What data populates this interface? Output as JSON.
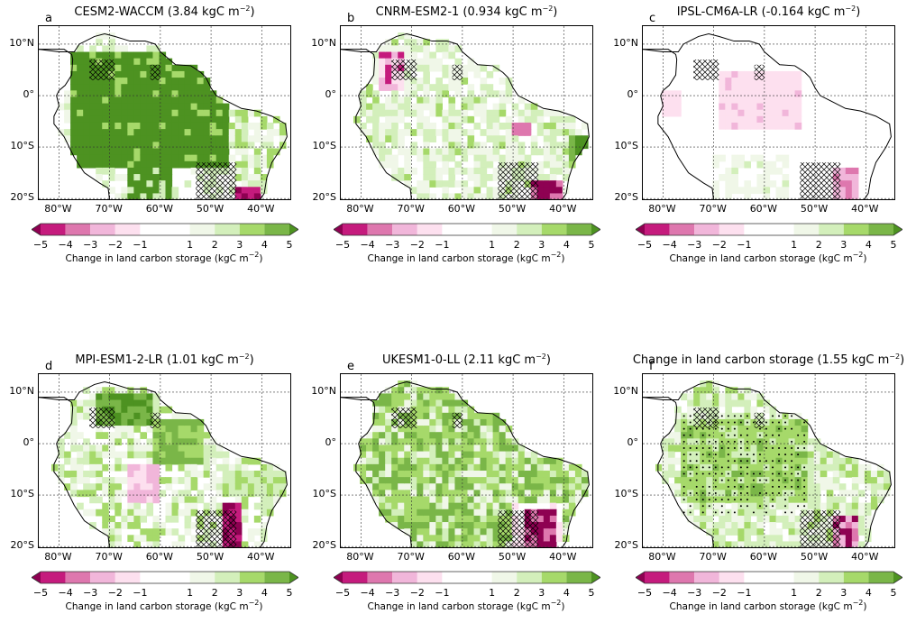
{
  "figure": {
    "colormap": {
      "levels": [
        -5,
        -4,
        -3,
        -2,
        -1,
        1,
        2,
        3,
        4,
        5
      ],
      "tick_labels": [
        "−5",
        "−4",
        "−3",
        "−2",
        "−1",
        "1",
        "2",
        "3",
        "4",
        "5"
      ],
      "colors": {
        "-6": "#8e0152",
        "-5": "#c51b7d",
        "-4": "#de77ae",
        "-3": "#f1b6da",
        "-2": "#fde0ef",
        "0": "#ffffff",
        "2": "#f0f7e8",
        "3": "#d3efbb",
        "4": "#a6d96a",
        "5": "#7ab648",
        "6": "#4d9221"
      },
      "label_prefix": "Change in land carbon storage (kgC m",
      "label_exp": "−2",
      "label_suffix": ")"
    },
    "axes": {
      "yticks": [
        "10°N",
        "0°",
        "10°S",
        "20°S"
      ],
      "ytick_values": [
        10,
        0,
        -10,
        -20
      ],
      "xticks": [
        "80°W",
        "70°W",
        "60°W",
        "50°W",
        "40°W"
      ],
      "xtick_values": [
        -80,
        -70,
        -60,
        -50,
        -40
      ],
      "xlim": [
        -84,
        -34
      ],
      "ylim": [
        -20.5,
        13.5
      ]
    }
  },
  "chart_data": [
    {
      "type": "heatmap",
      "panel": "a",
      "title_prefix": "CESM2-WACCM (3.84 kgC m",
      "exp": "−2",
      "title_suffix": ")",
      "mean_change": 3.84,
      "units": "kgC m-2",
      "dominant_class": 6
    },
    {
      "type": "heatmap",
      "panel": "b",
      "title_prefix": "CNRM-ESM2-1 (0.934 kgC m",
      "exp": "−2",
      "title_suffix": ")",
      "mean_change": 0.934,
      "units": "kgC m-2",
      "dominant_class": 2
    },
    {
      "type": "heatmap",
      "panel": "c",
      "title_prefix": "IPSL-CM6A-LR (-0.164 kgC m",
      "exp": "−2",
      "title_suffix": ")",
      "mean_change": -0.164,
      "units": "kgC m-2",
      "dominant_class": 0
    },
    {
      "type": "heatmap",
      "panel": "d",
      "title_prefix": "MPI-ESM1-2-LR (1.01 kgC m",
      "exp": "−2",
      "title_suffix": ")",
      "mean_change": 1.01,
      "units": "kgC m-2",
      "dominant_class": 3
    },
    {
      "type": "heatmap",
      "panel": "e",
      "title_prefix": "UKESM1-0-LL (2.11 kgC m",
      "exp": "−2",
      "title_suffix": ")",
      "mean_change": 2.11,
      "units": "kgC m-2",
      "dominant_class": 4
    },
    {
      "type": "heatmap",
      "panel": "f",
      "title_prefix": "Change in land carbon storage (1.55 kgC m",
      "exp": "−2",
      "title_suffix": ")",
      "mean_change": 1.55,
      "units": "kgC m-2",
      "dominant_class": 4,
      "stippling": true
    }
  ]
}
